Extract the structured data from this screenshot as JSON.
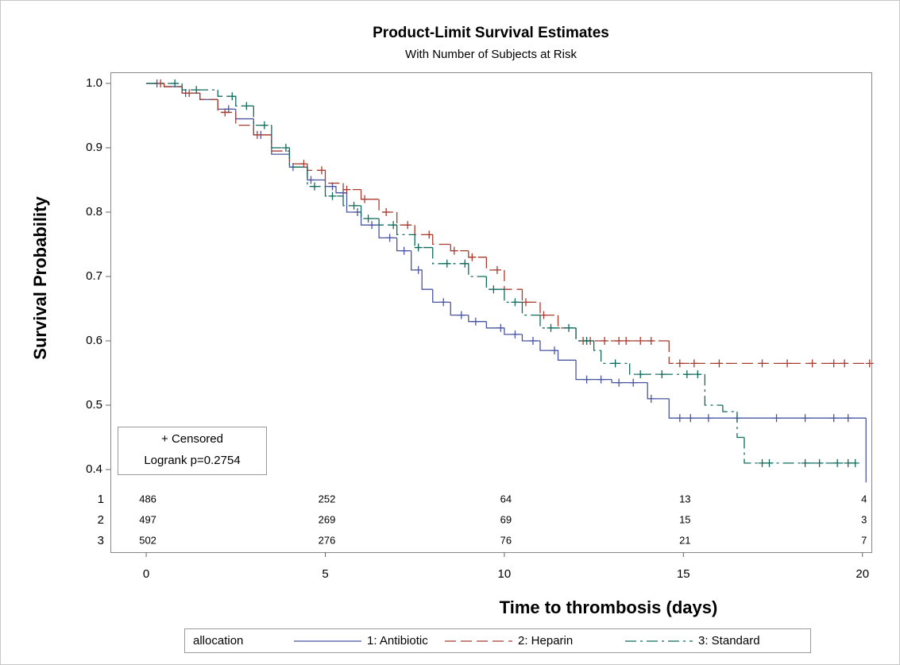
{
  "chart_data": {
    "type": "survival",
    "title": "Product-Limit Survival Estimates",
    "subtitle": "With Number of Subjects at Risk",
    "x_label": "Time to thrombosis (days)",
    "y_label": "Survival Probability",
    "xlim": [
      -1,
      20.25
    ],
    "ylim": [
      0.38,
      1.02
    ],
    "xticks": [
      0,
      5,
      10,
      15,
      20
    ],
    "yticks": [
      0.4,
      0.5,
      0.6,
      0.7,
      0.8,
      0.9,
      {
        "value": 1,
        "label": "1.0"
      }
    ],
    "legend_title": "allocation",
    "annotations": [
      "+ Censored",
      "Logrank p=0.2754"
    ],
    "series": [
      {
        "name": "1: Antibiotic",
        "color": "#4a55a0",
        "line_style": "solid",
        "x": [
          0,
          0.5,
          1,
          1.5,
          2,
          2.5,
          3,
          3.5,
          4,
          4.5,
          5,
          5.3,
          5.6,
          6,
          6.5,
          7,
          7.4,
          7.7,
          8,
          8.5,
          9,
          9.5,
          10,
          10.5,
          11,
          11.5,
          12,
          13,
          14,
          14.6,
          20.1
        ],
        "values": [
          1,
          0.995,
          0.985,
          0.975,
          0.96,
          0.945,
          0.92,
          0.89,
          0.87,
          0.85,
          0.84,
          0.83,
          0.8,
          0.78,
          0.76,
          0.74,
          0.71,
          0.68,
          0.66,
          0.64,
          0.63,
          0.62,
          0.61,
          0.6,
          0.585,
          0.57,
          0.54,
          0.535,
          0.51,
          0.48,
          0.38
        ],
        "censored_x": [
          0.3,
          1.1,
          2.3,
          3.2,
          4.1,
          4.6,
          5.2,
          5.5,
          5.9,
          6.3,
          6.8,
          7.2,
          7.6,
          8.3,
          8.8,
          9.2,
          9.9,
          10.3,
          10.8,
          11.4,
          12.3,
          12.7,
          13.2,
          13.6,
          14.1,
          14.9,
          15.2,
          15.7,
          16.5,
          17.6,
          18.4,
          19.2,
          19.6
        ]
      },
      {
        "name": "2: Heparin",
        "color": "#a83b30",
        "line_style": "dashed",
        "x": [
          0,
          0.5,
          1,
          1.5,
          2,
          2.5,
          3,
          3.5,
          4,
          4.5,
          5,
          5.5,
          6,
          6.5,
          7,
          7.5,
          8,
          8.5,
          9,
          9.5,
          10,
          10.5,
          11,
          11.5,
          12,
          14.6
        ],
        "values": [
          1,
          0.995,
          0.985,
          0.975,
          0.955,
          0.935,
          0.92,
          0.895,
          0.875,
          0.865,
          0.845,
          0.835,
          0.82,
          0.8,
          0.78,
          0.765,
          0.75,
          0.74,
          0.73,
          0.71,
          0.68,
          0.66,
          0.64,
          0.62,
          0.6,
          0.565
        ],
        "censored_x": [
          0.4,
          1.2,
          2.2,
          3.1,
          4.4,
          4.9,
          5.6,
          6.1,
          6.7,
          7.3,
          7.9,
          8.6,
          9.1,
          9.8,
          10.6,
          11.1,
          12.2,
          12.4,
          12.8,
          13.2,
          13.4,
          13.8,
          14.1,
          14.9,
          15.3,
          16.0,
          17.2,
          17.9,
          18.6,
          19.2,
          19.5,
          20.2
        ]
      },
      {
        "name": "3: Standard",
        "color": "#0f6b5c",
        "line_style": "dashdot",
        "x": [
          0,
          1,
          2,
          2.5,
          3,
          3.5,
          4,
          4.5,
          5,
          5.5,
          6,
          6.5,
          7,
          7.5,
          8,
          9,
          9.5,
          10,
          10.5,
          11,
          12,
          12.5,
          12.7,
          13.5,
          15.6,
          16.1,
          16.5,
          16.7
        ],
        "values": [
          1,
          0.99,
          0.98,
          0.965,
          0.935,
          0.9,
          0.87,
          0.84,
          0.825,
          0.81,
          0.79,
          0.78,
          0.765,
          0.745,
          0.72,
          0.7,
          0.68,
          0.66,
          0.64,
          0.62,
          0.6,
          0.585,
          0.565,
          0.548,
          0.5,
          0.49,
          0.45,
          0.41
        ],
        "censored_x": [
          0.8,
          1.4,
          2.4,
          2.8,
          3.3,
          3.9,
          4.7,
          5.2,
          5.8,
          6.2,
          6.9,
          7.6,
          8.4,
          8.9,
          9.7,
          10.3,
          11.3,
          11.8,
          12.3,
          13.1,
          13.8,
          14.4,
          15.1,
          15.4,
          17.2,
          17.4,
          18.4,
          18.8,
          19.3,
          19.6,
          19.8
        ]
      }
    ],
    "at_risk": {
      "times": [
        0,
        5,
        10,
        15,
        20
      ],
      "rows": [
        {
          "label": "1",
          "values": [
            486,
            252,
            64,
            13,
            4
          ]
        },
        {
          "label": "2",
          "values": [
            497,
            269,
            69,
            15,
            3
          ]
        },
        {
          "label": "3",
          "values": [
            502,
            276,
            76,
            21,
            7
          ]
        }
      ]
    }
  }
}
